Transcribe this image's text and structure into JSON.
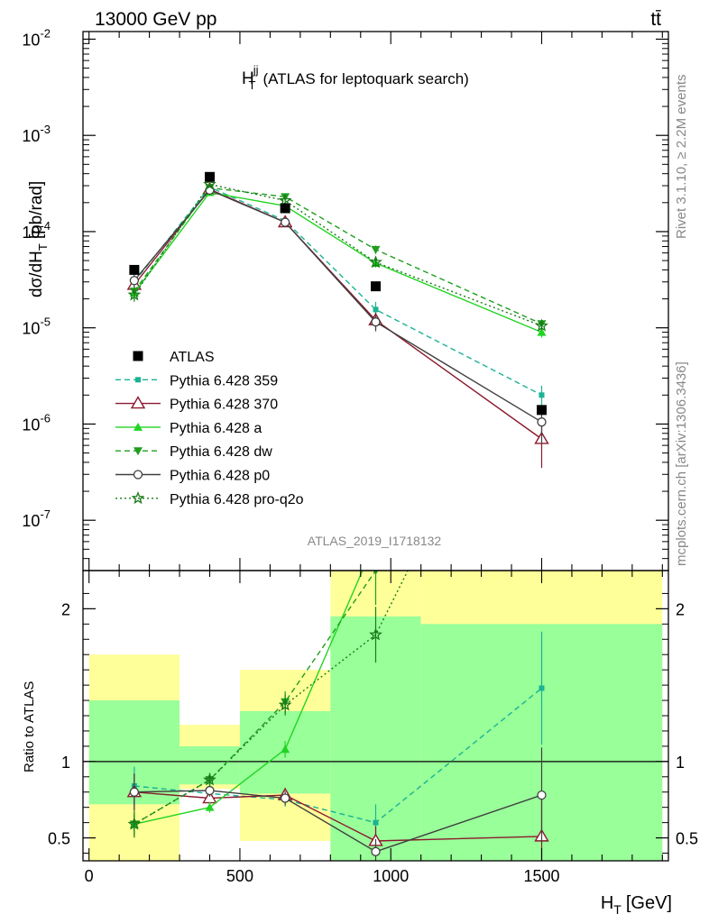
{
  "header": {
    "left": "13000 GeV pp",
    "right": "tt̄"
  },
  "side_text": {
    "rivet": "Rivet 3.1.10, ≥ 2.2M events",
    "mcplots": "mcplots.cern.ch [arXiv:1306.3436]"
  },
  "chart_data": {
    "type": "line",
    "title": "H_T^jj (ATLAS for leptoquark search)",
    "title_main": "H",
    "title_sup": "jj",
    "title_sub": "T",
    "title_rest": "(ATLAS for leptoquark search)",
    "analysis_id": "ATLAS_2019_I1718132",
    "xlabel": "H_T [GeV]",
    "xlabel_main": "H",
    "xlabel_sub": "T",
    "xlabel_rest": "[GeV]",
    "ylabel": "dσ/dH_T [pb/rad]",
    "ylabel_main": "dσ/dH",
    "ylabel_sub": "T",
    "ylabel_rest": "[pb/rad]",
    "ratio_ylabel": "Ratio to ATLAS",
    "xlim": [
      -20,
      1920
    ],
    "ylim": [
      3e-08,
      0.012
    ],
    "yscale": "log",
    "ratio_ylim": [
      0.35,
      2.25
    ],
    "x_ticks": [
      0,
      500,
      1000,
      1500
    ],
    "x_tick_labels": [
      "0",
      "500",
      "1000",
      "1500"
    ],
    "y_ticks": [
      1e-07,
      1e-06,
      1e-05,
      0.0001,
      0.001,
      0.01
    ],
    "y_tick_labels": [
      {
        "base": "10",
        "exp": "-7"
      },
      {
        "base": "10",
        "exp": "-6"
      },
      {
        "base": "10",
        "exp": "-5"
      },
      {
        "base": "10",
        "exp": "-4"
      },
      {
        "base": "10",
        "exp": "-3"
      },
      {
        "base": "10",
        "exp": "-2"
      }
    ],
    "ratio_y_ticks": [
      0.5,
      1,
      2
    ],
    "ratio_y_tick_labels": [
      "0.5",
      "1",
      "2"
    ],
    "legend_position": "center-left",
    "data": {
      "name": "ATLAS",
      "x": [
        150,
        400,
        650,
        950,
        1500
      ],
      "y": [
        4e-05,
        0.00037,
        0.000175,
        2.7e-05,
        1.4e-06
      ]
    },
    "ratio_bands": [
      {
        "x0": 0,
        "x1": 300,
        "green": [
          0.72,
          1.4
        ],
        "yellow": [
          0.25,
          1.7
        ]
      },
      {
        "x0": 300,
        "x1": 500,
        "green": [
          0.85,
          1.1
        ],
        "yellow": [
          0.82,
          1.24
        ]
      },
      {
        "x0": 500,
        "x1": 800,
        "green": [
          0.79,
          1.33
        ],
        "yellow": [
          0.48,
          1.6
        ]
      },
      {
        "x0": 800,
        "x1": 1100,
        "green": [
          0.25,
          1.95
        ],
        "yellow": [
          0.25,
          2.25
        ]
      },
      {
        "x0": 1100,
        "x1": 1900,
        "green": [
          0.25,
          1.9
        ],
        "yellow": [
          0.25,
          2.25
        ]
      }
    ],
    "series": [
      {
        "name": "Pythia 6.428 359",
        "color": "#1ab394",
        "dash": "6,4",
        "marker": "square-filled",
        "x": [
          150,
          400,
          650,
          950,
          1500
        ],
        "y": [
          3e-05,
          0.00029,
          0.00013,
          1.55e-05,
          2e-06
        ],
        "yerr": [
          0.15,
          0.05,
          0.06,
          0.2,
          0.25
        ],
        "ratio": [
          0.84,
          0.79,
          0.75,
          0.6,
          1.48
        ]
      },
      {
        "name": "Pythia 6.428 370",
        "color": "#8b1a2e",
        "dash": "",
        "marker": "triangle-open",
        "x": [
          150,
          400,
          650,
          950,
          1500
        ],
        "y": [
          2.8e-05,
          0.000275,
          0.000125,
          1.2e-05,
          7e-07
        ],
        "yerr": [
          0.15,
          0.05,
          0.06,
          0.2,
          0.5
        ],
        "ratio": [
          0.8,
          0.76,
          0.78,
          0.48,
          0.51
        ]
      },
      {
        "name": "Pythia 6.428 a",
        "color": "#22d422",
        "dash": "",
        "marker": "triangle-filled",
        "x": [
          150,
          400,
          650,
          950,
          1500
        ],
        "y": [
          2.3e-05,
          0.000255,
          0.000185,
          4.7e-05,
          9e-06
        ],
        "yerr": [
          0.12,
          0.05,
          0.05,
          0.1,
          0.12
        ],
        "ratio": [
          0.59,
          0.7,
          1.08,
          2.45,
          4.0
        ]
      },
      {
        "name": "Pythia 6.428 dw",
        "color": "#1e9e1e",
        "dash": "6,4",
        "marker": "triangle-down-filled",
        "x": [
          150,
          400,
          650,
          950,
          1500
        ],
        "y": [
          2.4e-05,
          0.000285,
          0.00023,
          6.5e-05,
          1.1e-05
        ],
        "yerr": [
          0.12,
          0.05,
          0.05,
          0.1,
          0.1
        ],
        "ratio": [
          0.59,
          0.88,
          1.39,
          2.25,
          4.0
        ]
      },
      {
        "name": "Pythia 6.428 p0",
        "color": "#404040",
        "dash": "",
        "marker": "circle-open",
        "x": [
          150,
          400,
          650,
          950,
          1500
        ],
        "y": [
          3.1e-05,
          0.00027,
          0.000125,
          1.15e-05,
          1.05e-06
        ],
        "yerr": [
          0.15,
          0.05,
          0.06,
          0.2,
          0.4
        ],
        "ratio": [
          0.8,
          0.81,
          0.76,
          0.41,
          0.78
        ]
      },
      {
        "name": "Pythia 6.428 pro-q2o",
        "color": "#1a7a1a",
        "dash": "2,3",
        "marker": "star-open",
        "x": [
          150,
          400,
          650,
          950,
          1500
        ],
        "y": [
          2.2e-05,
          0.00031,
          0.00021,
          4.8e-05,
          1.05e-05
        ],
        "yerr": [
          0.15,
          0.05,
          0.05,
          0.1,
          0.1
        ],
        "ratio": [
          0.59,
          0.88,
          1.37,
          1.83,
          4.0
        ]
      }
    ]
  }
}
